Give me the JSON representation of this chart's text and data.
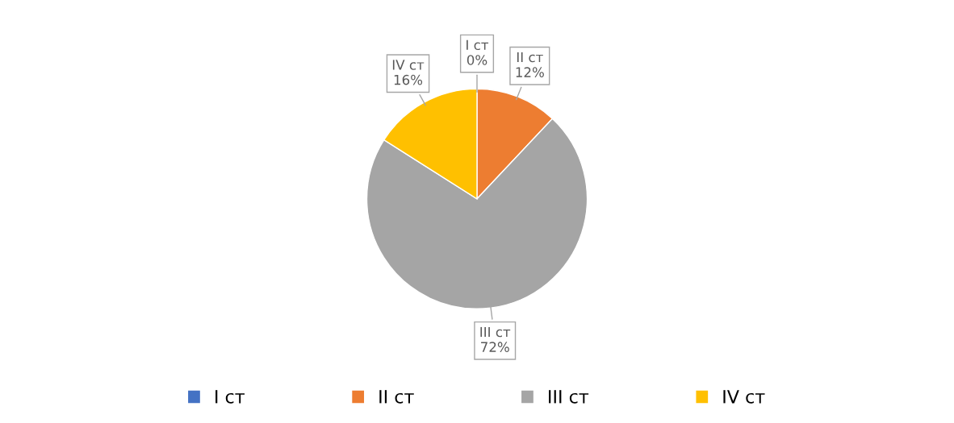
{
  "chart_data": {
    "type": "pie",
    "categories": [
      "I ст",
      "II ст",
      "III ст",
      "IV ст"
    ],
    "values": [
      0,
      12,
      72,
      16
    ],
    "colors": [
      "#4472c4",
      "#ed7d31",
      "#a5a5a5",
      "#ffc000"
    ],
    "value_labels": [
      "0%",
      "12%",
      "72%",
      "16%"
    ],
    "legend": "bottom"
  }
}
